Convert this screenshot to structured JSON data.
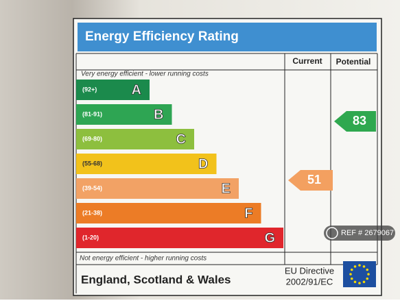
{
  "title": "Energy Efficiency Rating",
  "columns": [
    "Current",
    "Potential"
  ],
  "top_note": "Very energy efficient - lower running costs",
  "bands": [
    {
      "range": "(92+)",
      "letter": "A"
    },
    {
      "range": "(81-91)",
      "letter": "B"
    },
    {
      "range": "(69-80)",
      "letter": "C"
    },
    {
      "range": "(55-68)",
      "letter": "D"
    },
    {
      "range": "(39-54)",
      "letter": "E"
    },
    {
      "range": "(21-38)",
      "letter": "F"
    },
    {
      "range": "(1-20)",
      "letter": "G"
    }
  ],
  "current": "51",
  "potential": "83",
  "bottom_note": "Not energy efficient - higher running costs",
  "footer": {
    "region": "England, Scotland & Wales",
    "directive_line1": "EU Directive",
    "directive_line2": "2002/91/EC"
  },
  "watermark": "REF # 2679067"
}
